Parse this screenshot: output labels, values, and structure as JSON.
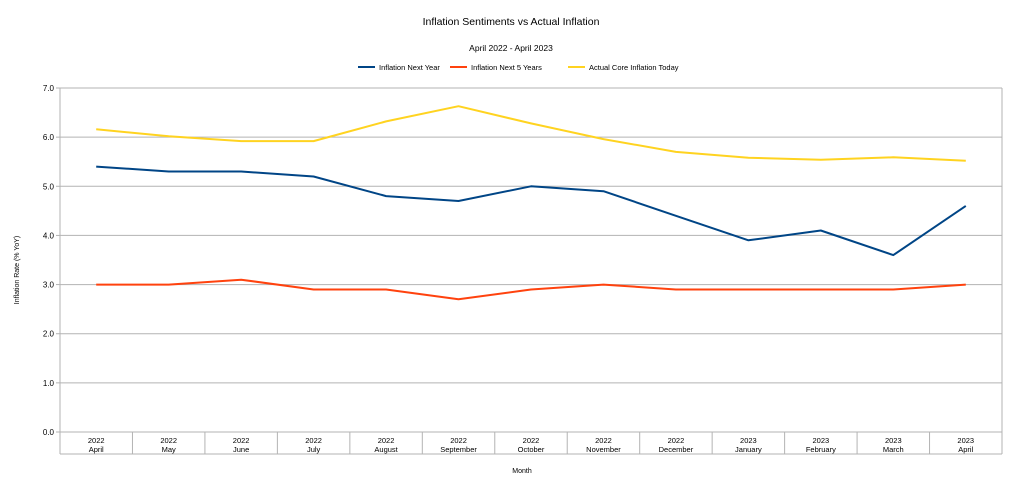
{
  "chart_data": {
    "type": "line",
    "title": "Inflation Sentiments vs Actual Inflation",
    "subtitle": "April 2022 - April 2023",
    "xlabel": "Month",
    "ylabel": "Inflation Rate (% YoY)",
    "ylim": [
      0,
      7
    ],
    "yticks": [
      "0.0",
      "1.0",
      "2.0",
      "3.0",
      "4.0",
      "5.0",
      "6.0",
      "7.0"
    ],
    "grid": true,
    "legend_position": "top-center",
    "categories": [
      {
        "year": "2022",
        "month": "April"
      },
      {
        "year": "2022",
        "month": "May"
      },
      {
        "year": "2022",
        "month": "June"
      },
      {
        "year": "2022",
        "month": "July"
      },
      {
        "year": "2022",
        "month": "August"
      },
      {
        "year": "2022",
        "month": "September"
      },
      {
        "year": "2022",
        "month": "October"
      },
      {
        "year": "2022",
        "month": "November"
      },
      {
        "year": "2022",
        "month": "December"
      },
      {
        "year": "2023",
        "month": "January"
      },
      {
        "year": "2023",
        "month": "February"
      },
      {
        "year": "2023",
        "month": "March"
      },
      {
        "year": "2023",
        "month": "April"
      }
    ],
    "series": [
      {
        "name": "Inflation Next Year",
        "color": "#004586",
        "values": [
          5.4,
          5.3,
          5.3,
          5.2,
          4.8,
          4.7,
          5.0,
          4.9,
          4.4,
          3.9,
          4.1,
          3.6,
          4.6
        ]
      },
      {
        "name": "Inflation Next 5 Years",
        "color": "#ff420e",
        "values": [
          3.0,
          3.0,
          3.1,
          2.9,
          2.9,
          2.7,
          2.9,
          3.0,
          2.9,
          2.9,
          2.9,
          2.9,
          3.0
        ]
      },
      {
        "name": "Actual Core Inflation Today",
        "color": "#ffd320",
        "values": [
          6.16,
          6.02,
          5.92,
          5.92,
          6.32,
          6.63,
          6.28,
          5.96,
          5.7,
          5.58,
          5.54,
          5.59,
          5.52
        ]
      }
    ]
  }
}
